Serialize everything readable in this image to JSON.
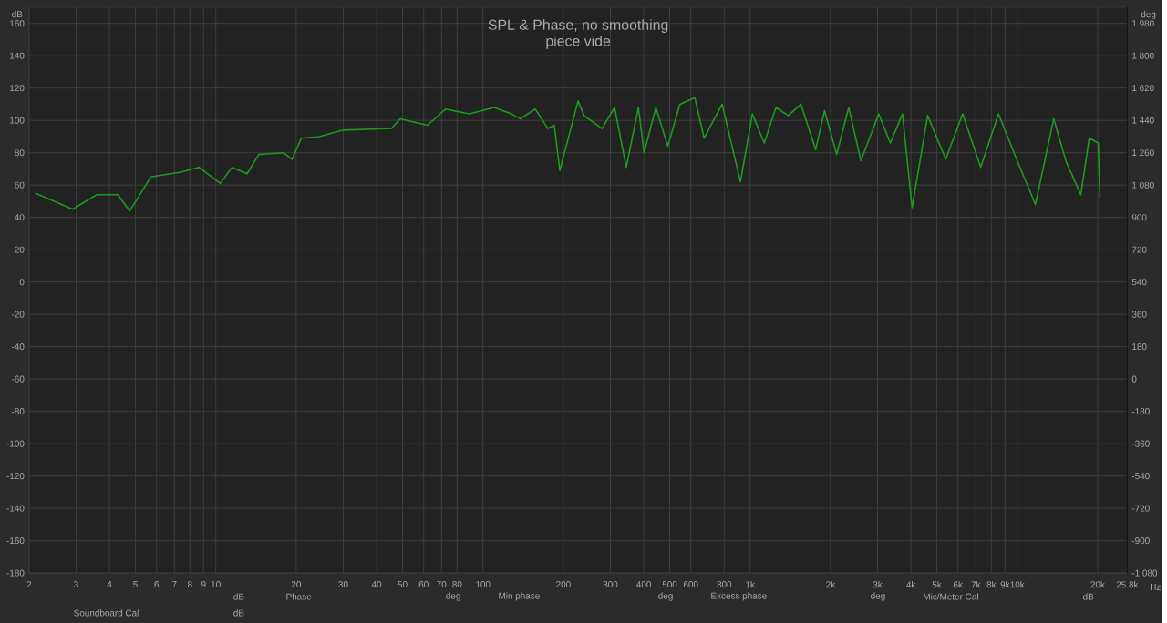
{
  "chart_data": {
    "type": "line",
    "title": "SPL & Phase, no smoothing",
    "subtitle": "piece vide",
    "xlabel": "Hz",
    "ylabel": "dB",
    "y2label": "deg",
    "log": "x",
    "grid": true,
    "xlim": [
      2,
      25800
    ],
    "ylim": [
      -180,
      170
    ],
    "y2lim": [
      -1080,
      2070
    ],
    "xticks": [
      2,
      3,
      4,
      5,
      6,
      7,
      8,
      9,
      10,
      20,
      30,
      40,
      50,
      60,
      70,
      80,
      100,
      200,
      300,
      400,
      500,
      600,
      800,
      {
        "value": 1000,
        "label": "1k"
      },
      {
        "value": 2000,
        "label": "2k"
      },
      {
        "value": 3000,
        "label": "3k"
      },
      {
        "value": 4000,
        "label": "4k"
      },
      {
        "value": 5000,
        "label": "5k"
      },
      {
        "value": 6000,
        "label": "6k"
      },
      {
        "value": 7000,
        "label": "7k"
      },
      {
        "value": 8000,
        "label": "8k"
      },
      {
        "value": 9000,
        "label": "9k"
      },
      {
        "value": 10000,
        "label": "10k"
      },
      {
        "value": 20000,
        "label": "20k"
      },
      {
        "value": 25800,
        "label": "25.8k"
      }
    ],
    "yticks": [
      -180,
      -160,
      -140,
      -120,
      -100,
      -80,
      -60,
      -40,
      -20,
      0,
      20,
      40,
      60,
      80,
      100,
      120,
      140,
      160
    ],
    "y2ticks": [
      {
        "value": -1080,
        "label": "-1 080"
      },
      -900,
      -720,
      -540,
      -360,
      -180,
      0,
      180,
      360,
      540,
      720,
      900,
      {
        "value": 1080,
        "label": "1 080"
      },
      {
        "value": 1260,
        "label": "1 260"
      },
      {
        "value": 1440,
        "label": "1 440"
      },
      {
        "value": 1620,
        "label": "1 620"
      },
      {
        "value": 1800,
        "label": "1 800"
      },
      {
        "value": 1980,
        "label": "1 980"
      }
    ],
    "series": [
      {
        "color": "#1f9a1f",
        "x": [
          2.11,
          2.91,
          3.58,
          4.3,
          4.76,
          5.71,
          7.4,
          8.65,
          10.4,
          11.5,
          13.1,
          14.5,
          17.9,
          19.3,
          20.9,
          24.4,
          30,
          45.5,
          49,
          62,
          72.5,
          89,
          110,
          128,
          138,
          157,
          175,
          185,
          194,
          227,
          239,
          279,
          311,
          344,
          382,
          401,
          444,
          492,
          546,
          621,
          673,
          786,
          920,
          1020,
          1130,
          1250,
          1390,
          1550,
          1760,
          1900,
          2110,
          2340,
          2600,
          3030,
          3350,
          3720,
          4040,
          4620,
          5400,
          6250,
          7300,
          8510,
          10000,
          11700,
          13700,
          15200,
          17300,
          18600,
          20100,
          20400
        ],
        "values": [
          55,
          45,
          54,
          54,
          44,
          65,
          68,
          71,
          61,
          71,
          67,
          79,
          80,
          76,
          89,
          90,
          94,
          95,
          101,
          97,
          107,
          104,
          108,
          104,
          101,
          107,
          95,
          97,
          69,
          112,
          103,
          95,
          108,
          71,
          108,
          80,
          108,
          84,
          110,
          114,
          89,
          110,
          62,
          104,
          86,
          108,
          103,
          110,
          82,
          106,
          79,
          108,
          75,
          104,
          86,
          104,
          46,
          103,
          76,
          104,
          71,
          104,
          75,
          48,
          101,
          75,
          54,
          89,
          86,
          52
        ]
      }
    ],
    "annotations": [
      "dB",
      "Phase",
      "deg",
      "Min phase",
      "deg",
      "Excess phase",
      "deg",
      "Mic/Meter Cal",
      "dB",
      "Soundboard Cal",
      "dB"
    ]
  }
}
